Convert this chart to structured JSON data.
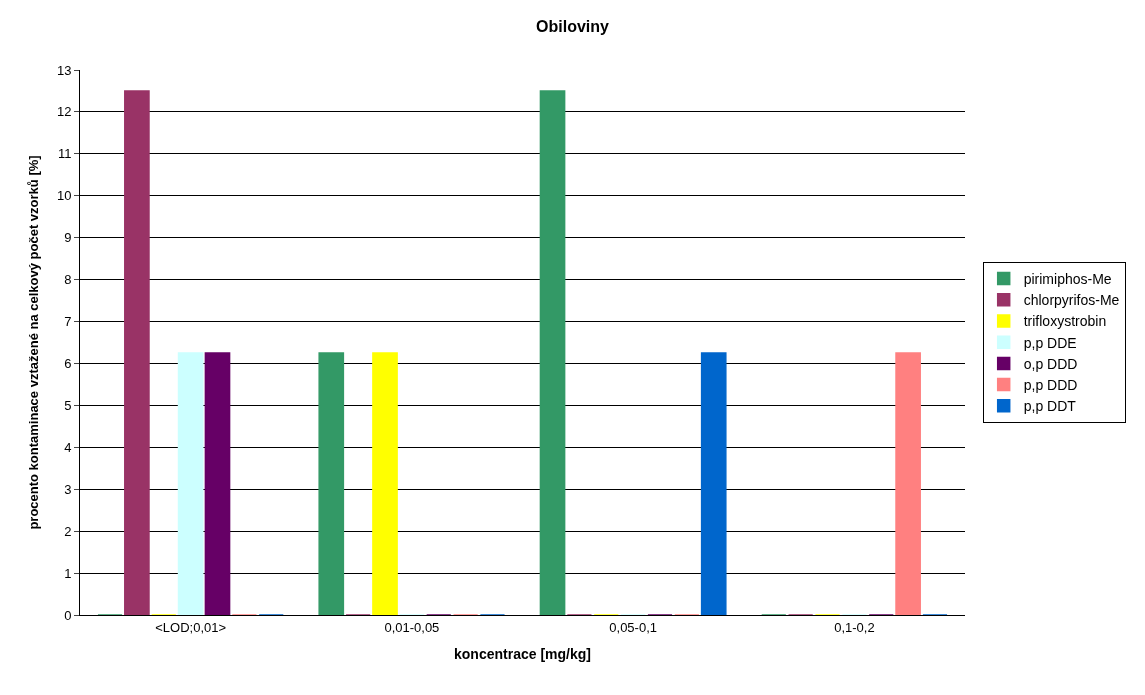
{
  "chart_data": {
    "type": "bar",
    "title": "Obiloviny",
    "xlabel": "koncentrace [mg/kg]",
    "ylabel": "procento kontaminace vztažené na celkový počet vzorků [%]",
    "categories": [
      "<LOD;0,01>",
      "0,01-0,05",
      "0,05-0,1",
      "0,1-0,2"
    ],
    "series": [
      {
        "name": "pirimiphos-Me",
        "color": "#339966",
        "values": [
          0,
          6.25,
          12.5,
          0
        ]
      },
      {
        "name": "chlorpyrifos-Me",
        "color": "#993366",
        "values": [
          12.5,
          0,
          0,
          0
        ]
      },
      {
        "name": "trifloxystrobin",
        "color": "#ffff00",
        "values": [
          0,
          6.25,
          0,
          0
        ]
      },
      {
        "name": "p,p DDE",
        "color": "#ccffff",
        "values": [
          6.25,
          0,
          0,
          0
        ]
      },
      {
        "name": "o,p DDD",
        "color": "#660066",
        "values": [
          6.25,
          0,
          0,
          0
        ]
      },
      {
        "name": "p,p DDD",
        "color": "#ff8080",
        "values": [
          0,
          0,
          0,
          6.25
        ]
      },
      {
        "name": "p,p DDT",
        "color": "#0066cc",
        "values": [
          0,
          0,
          6.25,
          0
        ]
      }
    ],
    "ylim": [
      0,
      13
    ],
    "yticks": [
      0,
      1,
      2,
      3,
      4,
      5,
      6,
      7,
      8,
      9,
      10,
      11,
      12,
      13
    ],
    "grid": "y",
    "legend": "right"
  }
}
